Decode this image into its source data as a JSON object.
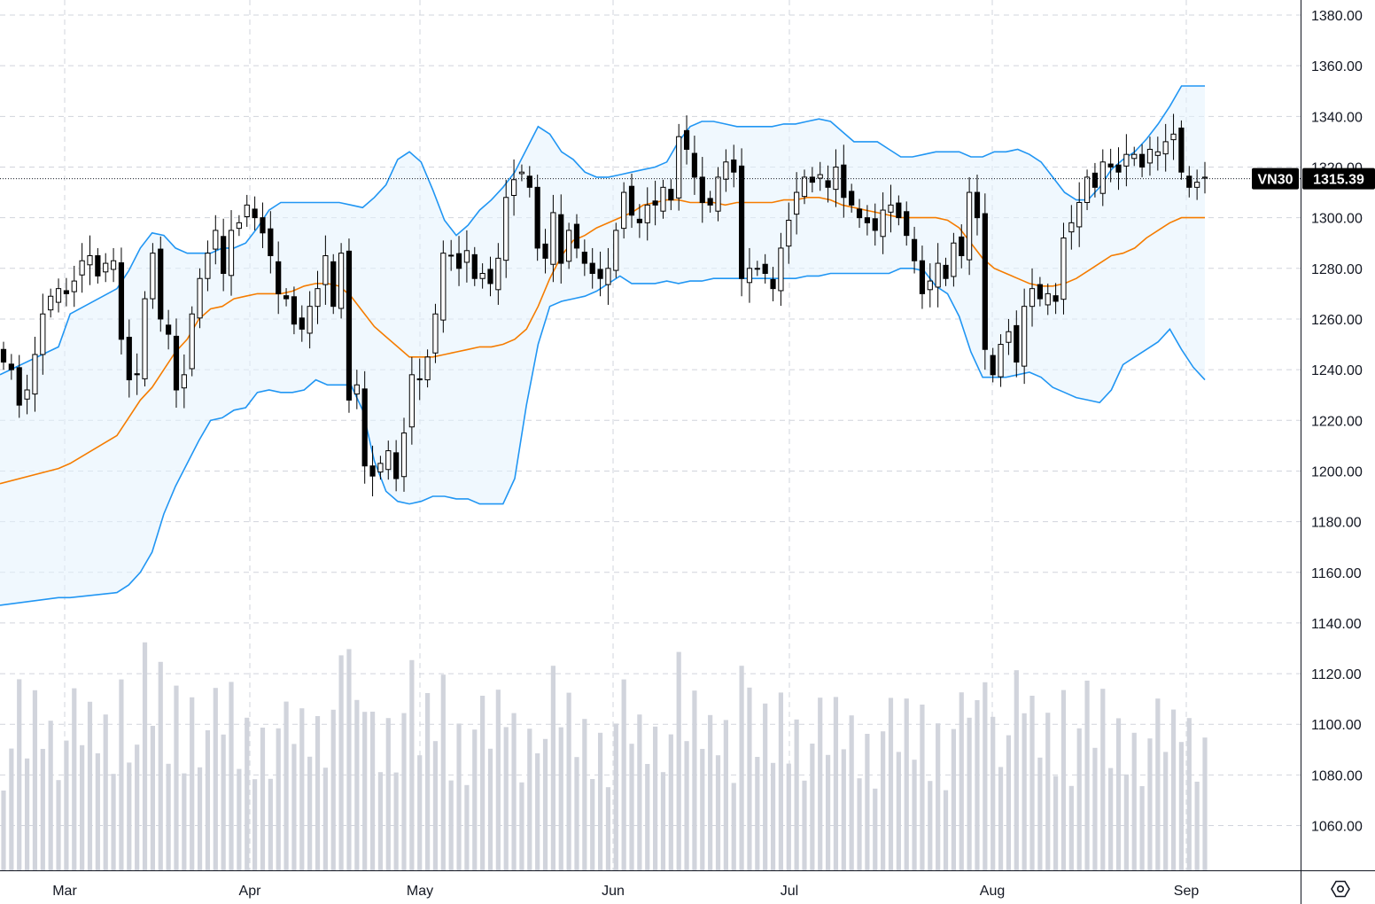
{
  "chart_data": {
    "type": "candlestick",
    "symbol": "VN30",
    "last_price": "1315.39",
    "y_ticks": [
      1060,
      1080,
      1100,
      1120,
      1140,
      1160,
      1180,
      1200,
      1220,
      1240,
      1260,
      1280,
      1300,
      1320,
      1340,
      1360,
      1380
    ],
    "y_tick_labels": [
      "1060.00",
      "1080.00",
      "1100.00",
      "1120.00",
      "1140.00",
      "1160.00",
      "1180.00",
      "1200.00",
      "1220.00",
      "1240.00",
      "1260.00",
      "1280.00",
      "1300.00",
      "1320.00",
      "1340.00",
      "1360.00",
      "1380.00"
    ],
    "x_labels": [
      "Mar",
      "Apr",
      "May",
      "Jun",
      "Jul",
      "Aug",
      "Sep"
    ],
    "volume_shown": true,
    "indicators": [
      "Bollinger Bands (upper, middle, lower)"
    ],
    "colors": {
      "up_candle": "#ffffff",
      "down_candle": "#000000",
      "candle_border": "#000000",
      "band_line": "#2196f3",
      "band_fill": "#e3f2fd",
      "middle_line": "#f57c00",
      "volume": "#d1d4dc",
      "grid": "#d1d4dc"
    },
    "bollinger": {
      "upper": [
        [
          0,
          1238
        ],
        [
          10,
          1249
        ],
        [
          12,
          1262
        ],
        [
          20,
          1272
        ],
        [
          22,
          1279
        ],
        [
          24,
          1288
        ],
        [
          26,
          1294
        ],
        [
          28,
          1293
        ],
        [
          30,
          1288
        ],
        [
          32,
          1286
        ],
        [
          34,
          1286
        ],
        [
          36,
          1286
        ],
        [
          38,
          1288
        ],
        [
          40,
          1288
        ],
        [
          42,
          1290
        ],
        [
          44,
          1296
        ],
        [
          46,
          1303
        ],
        [
          48,
          1306
        ],
        [
          50,
          1306
        ],
        [
          52,
          1306
        ],
        [
          54,
          1306
        ],
        [
          56,
          1306
        ],
        [
          58,
          1306
        ],
        [
          60,
          1305
        ],
        [
          62,
          1304
        ],
        [
          64,
          1308
        ],
        [
          66,
          1313
        ],
        [
          68,
          1323
        ],
        [
          70,
          1326
        ],
        [
          72,
          1322
        ],
        [
          74,
          1311
        ],
        [
          76,
          1299
        ],
        [
          78,
          1293
        ],
        [
          80,
          1297
        ],
        [
          82,
          1303
        ],
        [
          84,
          1307
        ],
        [
          86,
          1312
        ],
        [
          88,
          1318
        ],
        [
          90,
          1327
        ],
        [
          92,
          1336
        ],
        [
          94,
          1333
        ],
        [
          96,
          1326
        ],
        [
          98,
          1323
        ],
        [
          100,
          1318
        ],
        [
          102,
          1316
        ],
        [
          104,
          1316
        ],
        [
          106,
          1317
        ],
        [
          108,
          1318
        ],
        [
          110,
          1319
        ],
        [
          112,
          1320
        ],
        [
          114,
          1322
        ],
        [
          116,
          1330
        ],
        [
          118,
          1336
        ],
        [
          120,
          1338
        ],
        [
          122,
          1338
        ],
        [
          124,
          1337
        ],
        [
          126,
          1336
        ],
        [
          128,
          1336
        ],
        [
          130,
          1336
        ],
        [
          132,
          1336
        ],
        [
          134,
          1337
        ],
        [
          136,
          1337
        ],
        [
          138,
          1338
        ],
        [
          140,
          1339
        ],
        [
          142,
          1338
        ],
        [
          144,
          1334
        ],
        [
          146,
          1330
        ],
        [
          148,
          1330
        ],
        [
          150,
          1330
        ],
        [
          152,
          1327
        ],
        [
          154,
          1324
        ],
        [
          156,
          1324
        ],
        [
          158,
          1325
        ],
        [
          160,
          1326
        ],
        [
          162,
          1326
        ],
        [
          164,
          1326
        ],
        [
          166,
          1324
        ],
        [
          168,
          1324
        ],
        [
          170,
          1326
        ],
        [
          172,
          1326
        ],
        [
          174,
          1327
        ],
        [
          176,
          1325
        ],
        [
          178,
          1322
        ],
        [
          180,
          1316
        ],
        [
          182,
          1310
        ],
        [
          184,
          1307
        ],
        [
          186,
          1307
        ],
        [
          188,
          1312
        ],
        [
          190,
          1319
        ],
        [
          192,
          1323
        ],
        [
          194,
          1326
        ],
        [
          196,
          1331
        ],
        [
          198,
          1337
        ],
        [
          200,
          1344
        ],
        [
          202,
          1352
        ],
        [
          204,
          1352
        ],
        [
          206,
          1352
        ]
      ],
      "middle": [
        [
          0,
          1195
        ],
        [
          10,
          1201
        ],
        [
          12,
          1203
        ],
        [
          20,
          1214
        ],
        [
          22,
          1221
        ],
        [
          24,
          1228
        ],
        [
          26,
          1233
        ],
        [
          28,
          1240
        ],
        [
          30,
          1247
        ],
        [
          32,
          1252
        ],
        [
          34,
          1260
        ],
        [
          36,
          1264
        ],
        [
          38,
          1265
        ],
        [
          40,
          1268
        ],
        [
          42,
          1269
        ],
        [
          44,
          1270
        ],
        [
          46,
          1270
        ],
        [
          48,
          1270
        ],
        [
          50,
          1271
        ],
        [
          52,
          1273
        ],
        [
          54,
          1274
        ],
        [
          56,
          1274
        ],
        [
          58,
          1273
        ],
        [
          60,
          1269
        ],
        [
          62,
          1263
        ],
        [
          64,
          1257
        ],
        [
          66,
          1253
        ],
        [
          68,
          1249
        ],
        [
          70,
          1245
        ],
        [
          72,
          1245
        ],
        [
          74,
          1245
        ],
        [
          76,
          1246
        ],
        [
          78,
          1247
        ],
        [
          80,
          1248
        ],
        [
          82,
          1249
        ],
        [
          84,
          1249
        ],
        [
          86,
          1250
        ],
        [
          88,
          1252
        ],
        [
          90,
          1256
        ],
        [
          92,
          1265
        ],
        [
          94,
          1276
        ],
        [
          96,
          1285
        ],
        [
          98,
          1291
        ],
        [
          100,
          1293
        ],
        [
          102,
          1296
        ],
        [
          104,
          1298
        ],
        [
          106,
          1300
        ],
        [
          108,
          1302
        ],
        [
          110,
          1305
        ],
        [
          112,
          1306
        ],
        [
          114,
          1307
        ],
        [
          116,
          1307
        ],
        [
          118,
          1306
        ],
        [
          120,
          1306
        ],
        [
          122,
          1306
        ],
        [
          124,
          1305
        ],
        [
          126,
          1306
        ],
        [
          128,
          1306
        ],
        [
          130,
          1306
        ],
        [
          132,
          1306
        ],
        [
          134,
          1307
        ],
        [
          136,
          1307
        ],
        [
          138,
          1308
        ],
        [
          140,
          1308
        ],
        [
          142,
          1307
        ],
        [
          144,
          1305
        ],
        [
          146,
          1304
        ],
        [
          148,
          1303
        ],
        [
          150,
          1302
        ],
        [
          152,
          1301
        ],
        [
          154,
          1300
        ],
        [
          156,
          1300
        ],
        [
          158,
          1300
        ],
        [
          160,
          1300
        ],
        [
          162,
          1299
        ],
        [
          164,
          1296
        ],
        [
          166,
          1290
        ],
        [
          168,
          1284
        ],
        [
          170,
          1280
        ],
        [
          172,
          1278
        ],
        [
          174,
          1276
        ],
        [
          176,
          1274
        ],
        [
          178,
          1273
        ],
        [
          180,
          1273
        ],
        [
          182,
          1274
        ],
        [
          184,
          1276
        ],
        [
          186,
          1279
        ],
        [
          188,
          1282
        ],
        [
          190,
          1285
        ],
        [
          192,
          1286
        ],
        [
          194,
          1288
        ],
        [
          196,
          1292
        ],
        [
          198,
          1295
        ],
        [
          200,
          1298
        ],
        [
          202,
          1300
        ],
        [
          204,
          1300
        ],
        [
          206,
          1300
        ]
      ],
      "lower": [
        [
          0,
          1147
        ],
        [
          10,
          1150
        ],
        [
          12,
          1150
        ],
        [
          20,
          1152
        ],
        [
          22,
          1155
        ],
        [
          24,
          1160
        ],
        [
          26,
          1168
        ],
        [
          28,
          1183
        ],
        [
          30,
          1194
        ],
        [
          32,
          1203
        ],
        [
          34,
          1212
        ],
        [
          36,
          1220
        ],
        [
          38,
          1221
        ],
        [
          40,
          1224
        ],
        [
          42,
          1225
        ],
        [
          44,
          1231
        ],
        [
          46,
          1232
        ],
        [
          48,
          1231
        ],
        [
          50,
          1231
        ],
        [
          52,
          1232
        ],
        [
          54,
          1236
        ],
        [
          56,
          1234
        ],
        [
          58,
          1234
        ],
        [
          60,
          1234
        ],
        [
          62,
          1224
        ],
        [
          64,
          1204
        ],
        [
          66,
          1192
        ],
        [
          68,
          1188
        ],
        [
          70,
          1187
        ],
        [
          72,
          1188
        ],
        [
          74,
          1190
        ],
        [
          76,
          1190
        ],
        [
          78,
          1189
        ],
        [
          80,
          1189
        ],
        [
          82,
          1187
        ],
        [
          84,
          1187
        ],
        [
          86,
          1187
        ],
        [
          88,
          1197
        ],
        [
          90,
          1226
        ],
        [
          92,
          1250
        ],
        [
          94,
          1265
        ],
        [
          96,
          1267
        ],
        [
          98,
          1268
        ],
        [
          100,
          1269
        ],
        [
          102,
          1271
        ],
        [
          104,
          1274
        ],
        [
          106,
          1277
        ],
        [
          108,
          1274
        ],
        [
          110,
          1274
        ],
        [
          112,
          1274
        ],
        [
          114,
          1275
        ],
        [
          116,
          1274
        ],
        [
          118,
          1275
        ],
        [
          120,
          1275
        ],
        [
          122,
          1276
        ],
        [
          124,
          1276
        ],
        [
          126,
          1276
        ],
        [
          128,
          1276
        ],
        [
          130,
          1276
        ],
        [
          132,
          1276
        ],
        [
          134,
          1276
        ],
        [
          136,
          1276
        ],
        [
          138,
          1277
        ],
        [
          140,
          1277
        ],
        [
          142,
          1278
        ],
        [
          144,
          1278
        ],
        [
          146,
          1278
        ],
        [
          148,
          1278
        ],
        [
          150,
          1278
        ],
        [
          152,
          1278
        ],
        [
          154,
          1280
        ],
        [
          156,
          1280
        ],
        [
          158,
          1279
        ],
        [
          160,
          1273
        ],
        [
          162,
          1270
        ],
        [
          164,
          1261
        ],
        [
          166,
          1247
        ],
        [
          168,
          1237
        ],
        [
          170,
          1237
        ],
        [
          172,
          1237
        ],
        [
          174,
          1238
        ],
        [
          176,
          1239
        ],
        [
          178,
          1237
        ],
        [
          180,
          1233
        ],
        [
          182,
          1231
        ],
        [
          184,
          1229
        ],
        [
          186,
          1228
        ],
        [
          188,
          1227
        ],
        [
          190,
          1232
        ],
        [
          192,
          1242
        ],
        [
          194,
          1245
        ],
        [
          196,
          1248
        ],
        [
          198,
          1251
        ],
        [
          200,
          1256
        ],
        [
          202,
          1248
        ],
        [
          204,
          1241
        ],
        [
          206,
          1236
        ]
      ]
    }
  },
  "footer": {
    "settings_icon": "settings-hexagon-icon"
  }
}
